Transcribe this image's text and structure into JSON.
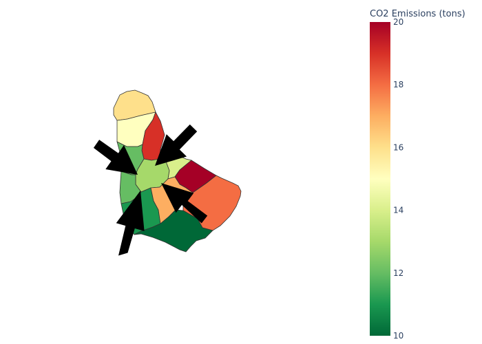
{
  "chart_data": {
    "type": "choropleth",
    "title": "",
    "colorbar": {
      "title": "CO2 Emissions (tons)",
      "range": [
        10,
        20
      ],
      "ticks": [
        10,
        12,
        14,
        16,
        18,
        20
      ],
      "colorscale": "RdYlGn reversed",
      "stops": [
        {
          "value": 10,
          "color": "#006837"
        },
        {
          "value": 11,
          "color": "#1a9850"
        },
        {
          "value": 12,
          "color": "#66bd63"
        },
        {
          "value": 13,
          "color": "#a6d96a"
        },
        {
          "value": 14,
          "color": "#d9ef8b"
        },
        {
          "value": 15,
          "color": "#ffffbf"
        },
        {
          "value": 16,
          "color": "#fee08b"
        },
        {
          "value": 17,
          "color": "#fdae61"
        },
        {
          "value": 18,
          "color": "#f46d43"
        },
        {
          "value": 19,
          "color": "#d73027"
        },
        {
          "value": 20,
          "color": "#a50026"
        }
      ]
    },
    "regions": [
      {
        "id": "north",
        "value": 16.0
      },
      {
        "id": "north-central",
        "value": 15.0
      },
      {
        "id": "north-east",
        "value": 19.0
      },
      {
        "id": "west-upper",
        "value": 12.0
      },
      {
        "id": "central",
        "value": 13.0
      },
      {
        "id": "east-central",
        "value": 14.0
      },
      {
        "id": "east",
        "value": 20.0
      },
      {
        "id": "west-lower",
        "value": 12.0
      },
      {
        "id": "south-west",
        "value": 11.0
      },
      {
        "id": "south-central",
        "value": 17.0
      },
      {
        "id": "south-east",
        "value": 18.0
      },
      {
        "id": "south",
        "value": 10.0
      }
    ],
    "annotations": [
      {
        "type": "arrow"
      },
      {
        "type": "arrow"
      },
      {
        "type": "arrow"
      },
      {
        "type": "arrow"
      }
    ]
  }
}
